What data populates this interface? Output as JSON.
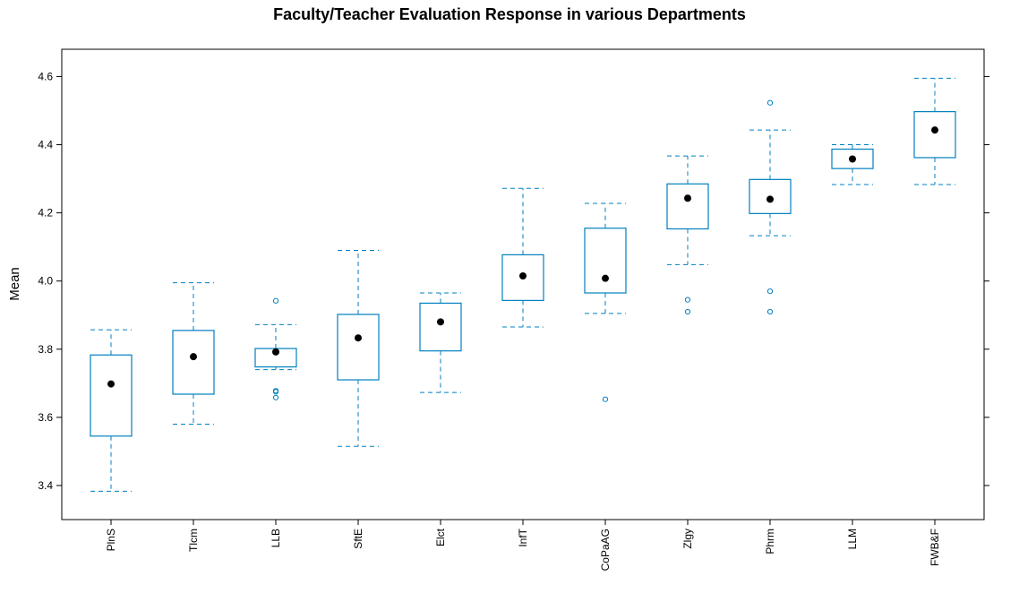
{
  "chart_data": {
    "type": "boxplot",
    "title": "Faculty/Teacher Evaluation Response in various Departments",
    "xlabel": "",
    "ylabel": "Mean",
    "ylim": [
      3.3,
      4.68
    ],
    "yticks": [
      3.4,
      3.6,
      3.8,
      4.0,
      4.2,
      4.4,
      4.6
    ],
    "ytick_labels": [
      "3.4",
      "3.6",
      "3.8",
      "4.0",
      "4.2",
      "4.4",
      "4.6"
    ],
    "grid": false,
    "colors": {
      "box": "#0080c0",
      "median": "#000000",
      "axis": "#000000"
    },
    "categories": [
      "PlnS",
      "Tlcm",
      "LLB",
      "SftE",
      "Elct",
      "InfT",
      "CoPaAG",
      "Zlgy",
      "Phrm",
      "LLM",
      "FWB&F"
    ],
    "boxes": [
      {
        "category": "PlnS",
        "whisker_low": 3.383,
        "q1": 3.545,
        "median": 3.698,
        "q3": 3.783,
        "whisker_high": 3.857,
        "outliers": []
      },
      {
        "category": "Tlcm",
        "whisker_low": 3.58,
        "q1": 3.668,
        "median": 3.778,
        "q3": 3.855,
        "whisker_high": 3.995,
        "outliers": []
      },
      {
        "category": "LLB",
        "whisker_low": 3.74,
        "q1": 3.748,
        "median": 3.792,
        "q3": 3.802,
        "whisker_high": 3.872,
        "outliers": [
          3.942,
          3.678,
          3.675,
          3.658
        ]
      },
      {
        "category": "SftE",
        "whisker_low": 3.515,
        "q1": 3.71,
        "median": 3.833,
        "q3": 3.902,
        "whisker_high": 4.09,
        "outliers": []
      },
      {
        "category": "Elct",
        "whisker_low": 3.673,
        "q1": 3.795,
        "median": 3.88,
        "q3": 3.935,
        "whisker_high": 3.965,
        "outliers": []
      },
      {
        "category": "InfT",
        "whisker_low": 3.865,
        "q1": 3.943,
        "median": 4.015,
        "q3": 4.077,
        "whisker_high": 4.272,
        "outliers": []
      },
      {
        "category": "CoPaAG",
        "whisker_low": 3.905,
        "q1": 3.965,
        "median": 4.008,
        "q3": 4.155,
        "whisker_high": 4.228,
        "outliers": [
          3.653
        ]
      },
      {
        "category": "Zlgy",
        "whisker_low": 4.048,
        "q1": 4.153,
        "median": 4.243,
        "q3": 4.285,
        "whisker_high": 4.367,
        "outliers": [
          3.945,
          3.91
        ]
      },
      {
        "category": "Phrm",
        "whisker_low": 4.133,
        "q1": 4.198,
        "median": 4.24,
        "q3": 4.298,
        "whisker_high": 4.443,
        "outliers": [
          4.523,
          3.97,
          3.91
        ]
      },
      {
        "category": "LLM",
        "whisker_low": 4.283,
        "q1": 4.33,
        "median": 4.358,
        "q3": 4.387,
        "whisker_high": 4.4,
        "outliers": []
      },
      {
        "category": "FWB&F",
        "whisker_low": 4.283,
        "q1": 4.362,
        "median": 4.443,
        "q3": 4.497,
        "whisker_high": 4.595,
        "outliers": []
      }
    ]
  }
}
